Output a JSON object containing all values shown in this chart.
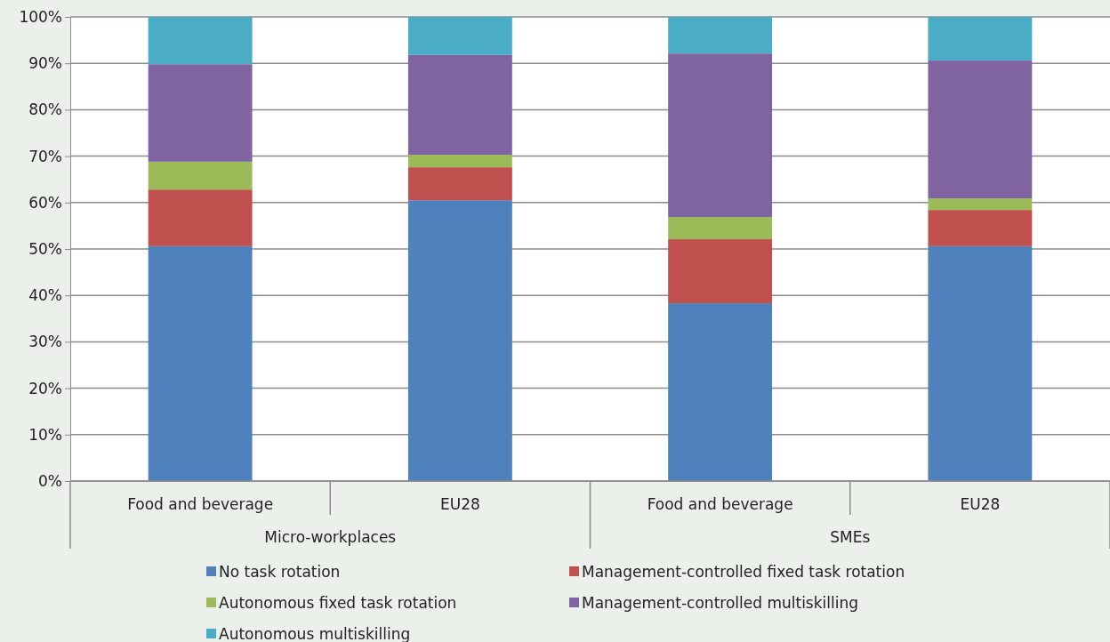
{
  "chart_data": {
    "type": "bar",
    "stacked": true,
    "categories": [
      "Food and beverage",
      "EU28",
      "Food and beverage",
      "EU28"
    ],
    "series": [
      {
        "name": "No task rotation",
        "color": "#4f81bd",
        "values": [
          50.6,
          60.5,
          38.3,
          50.6
        ]
      },
      {
        "name": "Management-controlled fixed task rotation",
        "color": "#c0504d",
        "values": [
          12.2,
          7.1,
          13.8,
          7.8
        ]
      },
      {
        "name": "Autonomous fixed task rotation",
        "color": "#9bbb59",
        "values": [
          6.0,
          2.7,
          4.8,
          2.5
        ]
      },
      {
        "name": "Management-controlled multiskilling",
        "color": "#8064a2",
        "values": [
          21.0,
          21.5,
          35.2,
          29.7
        ]
      },
      {
        "name": "Autonomous multiskilling",
        "color": "#4bacc6",
        "values": [
          10.2,
          8.2,
          7.9,
          9.4
        ]
      }
    ],
    "ylim": [
      0,
      100
    ],
    "yticks": [
      {
        "value": 0,
        "label": "0%"
      },
      {
        "value": 10,
        "label": "10%"
      },
      {
        "value": 20,
        "label": "20%"
      },
      {
        "value": 30,
        "label": "30%"
      },
      {
        "value": 40,
        "label": "40%"
      },
      {
        "value": 50,
        "label": "50%"
      },
      {
        "value": 60,
        "label": "60%"
      },
      {
        "value": 70,
        "label": "70%"
      },
      {
        "value": 80,
        "label": "80%"
      },
      {
        "value": 90,
        "label": "90%"
      },
      {
        "value": 100,
        "label": "100%"
      }
    ],
    "grid": "y",
    "legend": "bottom",
    "annotations": [
      "Micro-workplaces",
      "SMEs"
    ]
  }
}
